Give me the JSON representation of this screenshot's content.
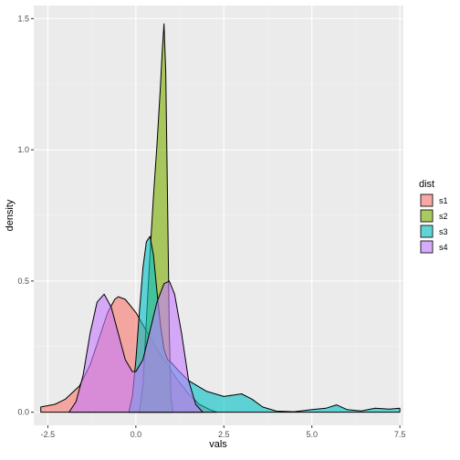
{
  "chart_data": {
    "type": "area",
    "xlabel": "vals",
    "ylabel": "density",
    "xlim": [
      -2.9,
      7.6
    ],
    "ylim": [
      -0.05,
      1.55
    ],
    "x_ticks": [
      -2.5,
      0.0,
      2.5,
      5.0,
      7.5
    ],
    "x_tick_labels": [
      "-2.5",
      "0.0",
      "2.5",
      "5.0",
      "7.5"
    ],
    "y_ticks": [
      0.0,
      0.5,
      1.0,
      1.5
    ],
    "y_tick_labels": [
      "0.0",
      "0.5",
      "1.0",
      "1.5"
    ],
    "grid": true,
    "panel_background": "#ebebeb",
    "legend": {
      "title": "dist",
      "position": "right",
      "entries": [
        {
          "label": "s1",
          "color": "#F8766D"
        },
        {
          "label": "s2",
          "color": "#7CAE00"
        },
        {
          "label": "s3",
          "color": "#00BFC4"
        },
        {
          "label": "s4",
          "color": "#C77CFF"
        }
      ]
    },
    "fill_opacity": 0.6,
    "series": [
      {
        "name": "s1",
        "color": "#F8766D",
        "x": [
          -2.7,
          -2.3,
          -2.0,
          -1.6,
          -1.3,
          -1.0,
          -0.8,
          -0.6,
          -0.5,
          -0.3,
          0.0,
          0.3,
          0.6,
          0.9,
          1.2,
          1.5,
          1.8,
          2.1,
          2.3
        ],
        "y": [
          0.02,
          0.03,
          0.05,
          0.1,
          0.18,
          0.3,
          0.38,
          0.43,
          0.44,
          0.43,
          0.38,
          0.31,
          0.24,
          0.18,
          0.12,
          0.07,
          0.03,
          0.01,
          0.0
        ]
      },
      {
        "name": "s2",
        "color": "#7CAE00",
        "x": [
          0.1,
          0.2,
          0.3,
          0.4,
          0.5,
          0.6,
          0.7,
          0.75,
          0.8,
          0.85,
          0.9,
          0.95,
          1.0,
          1.05
        ],
        "y": [
          0.0,
          0.1,
          0.35,
          0.6,
          0.82,
          1.02,
          1.25,
          1.38,
          1.48,
          1.3,
          0.8,
          0.3,
          0.05,
          0.0
        ]
      },
      {
        "name": "s3",
        "color": "#00BFC4",
        "x": [
          -0.2,
          -0.1,
          0.0,
          0.1,
          0.2,
          0.3,
          0.4,
          0.5,
          0.6,
          0.7,
          0.8,
          0.9,
          1.0,
          1.2,
          1.5,
          2.0,
          2.5,
          3.0,
          3.3,
          3.6,
          4.0,
          4.5,
          5.0,
          5.4,
          5.7,
          6.0,
          6.4,
          6.8,
          7.2,
          7.5
        ],
        "y": [
          0.0,
          0.06,
          0.2,
          0.38,
          0.55,
          0.65,
          0.67,
          0.6,
          0.46,
          0.33,
          0.24,
          0.2,
          0.19,
          0.16,
          0.12,
          0.08,
          0.06,
          0.07,
          0.05,
          0.02,
          0.004,
          0.002,
          0.01,
          0.015,
          0.028,
          0.01,
          0.005,
          0.015,
          0.012,
          0.015
        ]
      },
      {
        "name": "s4",
        "color": "#C77CFF",
        "x": [
          -1.9,
          -1.7,
          -1.5,
          -1.3,
          -1.1,
          -0.9,
          -0.7,
          -0.5,
          -0.3,
          -0.1,
          0.0,
          0.2,
          0.4,
          0.6,
          0.8,
          0.95,
          1.1,
          1.3,
          1.5,
          1.7,
          1.9
        ],
        "y": [
          0.0,
          0.04,
          0.14,
          0.3,
          0.42,
          0.45,
          0.4,
          0.3,
          0.2,
          0.155,
          0.155,
          0.2,
          0.31,
          0.42,
          0.49,
          0.5,
          0.45,
          0.3,
          0.12,
          0.03,
          0.0
        ]
      }
    ]
  }
}
